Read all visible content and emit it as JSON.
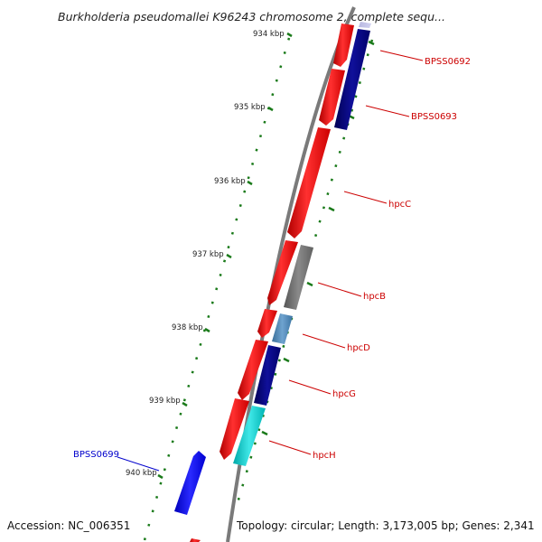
{
  "viewer": {
    "title": "Burkholderia pseudomallei K96243 chromosome 2, complete sequ...",
    "accession_label": "Accession: NC_006351",
    "stats_label": "Topology: circular; Length: 3,173,005 bp; Genes: 2,341"
  },
  "scale_ticks": [
    "934 kbp",
    "935 kbp",
    "936 kbp",
    "937 kbp",
    "938 kbp",
    "939 kbp",
    "940 kbp"
  ],
  "gene_labels": [
    {
      "name": "BPSS0692",
      "color": "#cc0000"
    },
    {
      "name": "BPSS0693",
      "color": "#cc0000"
    },
    {
      "name": "hpcC",
      "color": "#cc0000"
    },
    {
      "name": "hpcB",
      "color": "#cc0000"
    },
    {
      "name": "hpcD",
      "color": "#cc0000"
    },
    {
      "name": "hpcG",
      "color": "#cc0000"
    },
    {
      "name": "hpcH",
      "color": "#cc0000"
    },
    {
      "name": "BPSS0699",
      "color": "#0000cc"
    }
  ],
  "colors": {
    "backbone": "#7a7a7a",
    "scale_ticks": "#1a7a1a",
    "forward_gene": "#ff0000",
    "navy_gene": "#000080",
    "grey_gene": "#707070",
    "steel_gene": "#4682b4",
    "cyan_gene": "#00cccc",
    "blue_gene": "#0000ff"
  }
}
